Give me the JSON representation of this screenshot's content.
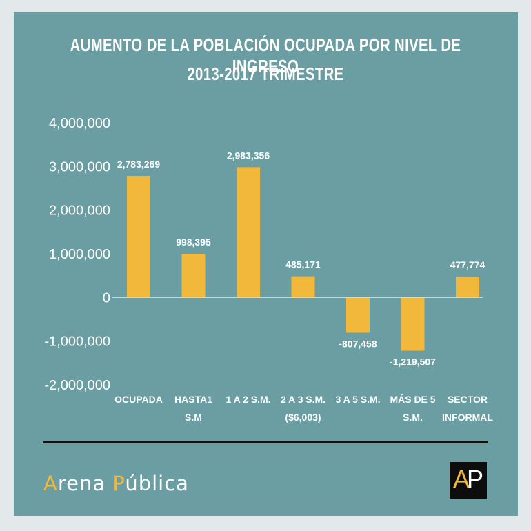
{
  "header": {
    "title_line1": "AUMENTO DE LA POBLACIÓN OCUPADA POR NIVEL DE INGRESO",
    "title_line2": "2013-2017 TRIMESTRE"
  },
  "chart_data": {
    "type": "bar",
    "categories": [
      [
        "OCUPADA"
      ],
      [
        "HASTA1",
        "S.M"
      ],
      [
        "1 A 2 S.M."
      ],
      [
        "2 A 3 S.M.",
        "($6,003)"
      ],
      [
        "3 A 5 S.M."
      ],
      [
        "MÁS DE 5",
        "S.M."
      ],
      [
        "SECTOR",
        "INFORMAL"
      ]
    ],
    "values": [
      2783269,
      998395,
      2983356,
      485171,
      -807458,
      -1219507,
      477774
    ],
    "value_labels": [
      "2,783,269",
      "998,395",
      "2,983,356",
      "485,171",
      "-807,458",
      "-1,219,507",
      "477,774"
    ],
    "ylim": [
      -2000000,
      4000000
    ],
    "yticks": [
      4000000,
      3000000,
      2000000,
      1000000,
      0,
      -1000000,
      -2000000
    ],
    "ytick_labels": [
      "4,000,000",
      "3,000,000",
      "2,000,000",
      "1,000,000",
      "0",
      "-1,000,000",
      "-2,000,000"
    ],
    "bar_color": "#f2b83c",
    "grid": false
  },
  "footer": {
    "brand_first_letter": "A",
    "brand_rest_1": "rena ",
    "brand_second_letter": "P",
    "brand_rest_2": "ública",
    "logo_letters": [
      "A",
      "P"
    ]
  },
  "colors": {
    "background": "#e3e9eb",
    "panel": "#6a9ea3",
    "accent": "#f2b83c"
  }
}
